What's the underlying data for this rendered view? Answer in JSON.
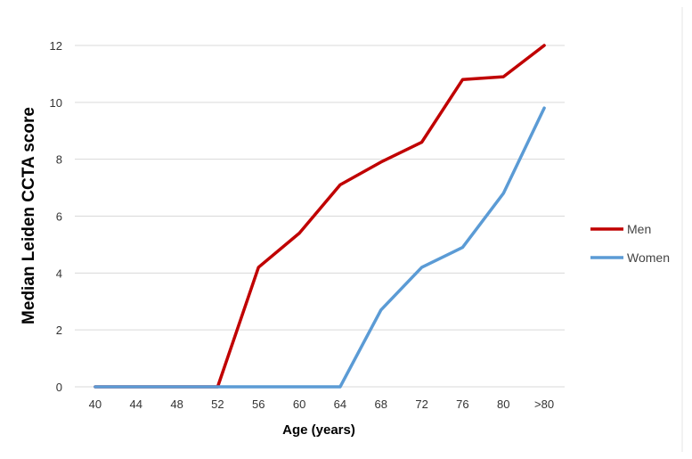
{
  "chart_data": {
    "type": "line",
    "xlabel": "Age (years)",
    "ylabel": "Median Leiden CCTA score",
    "ylim": [
      0,
      12
    ],
    "yticks": [
      0,
      2,
      4,
      6,
      8,
      10,
      12
    ],
    "categories": [
      "40",
      "44",
      "48",
      "52",
      "56",
      "60",
      "64",
      "68",
      "72",
      "76",
      "80",
      ">80"
    ],
    "grid": "horizontal",
    "legend_position": "right",
    "series": [
      {
        "name": "Men",
        "color": "#c00000",
        "values": [
          0,
          0,
          0,
          0,
          4.2,
          5.4,
          7.1,
          7.9,
          8.6,
          10.8,
          10.9,
          12.0
        ]
      },
      {
        "name": "Women",
        "color": "#5b9bd5",
        "values": [
          0,
          0,
          0,
          0,
          0,
          0,
          0,
          2.7,
          4.2,
          4.9,
          6.8,
          9.8
        ]
      }
    ]
  }
}
